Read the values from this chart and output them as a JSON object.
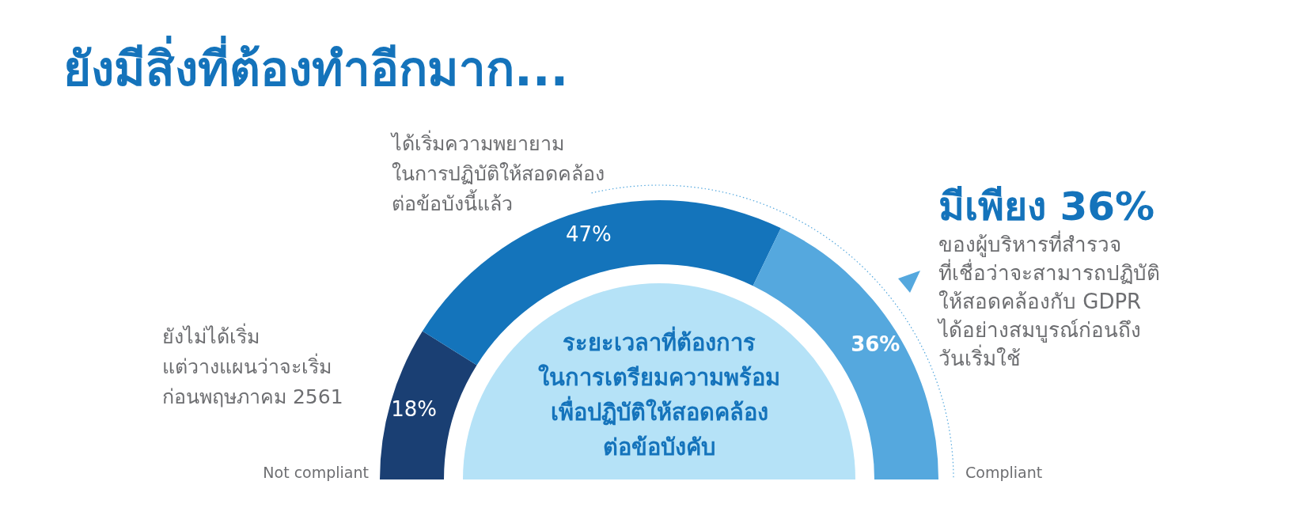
{
  "chart_data": {
    "type": "donut",
    "title": "ยังมีสิ่งที่ต้องทำอีกมาก...",
    "categories": [
      "ยังไม่ได้เริ่ม\nแต่วางแผนว่าจะเริ่ม\nก่อนพฤษภาคม 2561",
      "ได้เริ่มความพยายาม\nในการปฏิบัติให้สอดคล้อง\nต่อข้อบังนี้แล้ว",
      null
    ],
    "values": [
      18,
      47,
      36
    ],
    "colors": [
      "#1a3f73",
      "#1474bb",
      "#55a8de"
    ],
    "value_labels": [
      "18%",
      "47%",
      "36%"
    ],
    "annotations": [
      "ระยะเวลาที่ต้องการ\nในการเตรียมความพร้อม\nเพื่อปฏิบัติให้สอดคล้อง\nต่อข้อบังคับ",
      "Not compliant",
      "Compliant",
      "มีเพียง 36%",
      "ของผู้บริหารที่สำรวจ\nที่เชื่อว่าจะสามารถปฏิบัติ\nให้สอดคล้องกับ GDPR\nได้อย่างสมบูรณ์ก่อนถึง\nวันเริ่มใช้"
    ]
  }
}
